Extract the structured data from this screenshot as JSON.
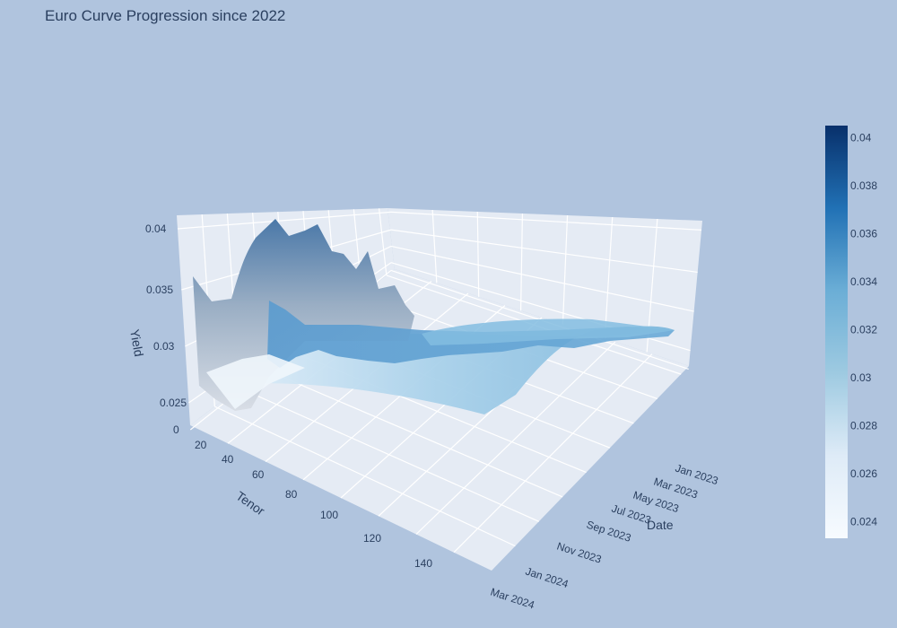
{
  "chart_data": {
    "type": "surface",
    "title": "Euro Curve Progression since 2022",
    "xlabel": "Tenor",
    "ylabel": "Date",
    "zlabel": "Yield",
    "x_ticks": [
      "20",
      "40",
      "60",
      "80",
      "100",
      "120",
      "140"
    ],
    "y_ticks": [
      "Jan 2023",
      "Mar 2023",
      "May 2023",
      "Jul 2023",
      "Sep 2023",
      "Nov 2023",
      "Jan 2024",
      "Mar 2024"
    ],
    "z_ticks": [
      "0",
      "0.025",
      "0.03",
      "0.035",
      "0.04"
    ],
    "colorbar": {
      "range": [
        0.0233,
        0.0405
      ],
      "ticks": [
        "0.024",
        "0.026",
        "0.028",
        "0.03",
        "0.032",
        "0.034",
        "0.036",
        "0.038",
        "0.04"
      ]
    },
    "colorscale": "Blues",
    "series": [
      {
        "date": "Jan 2023",
        "tenor": [
          1,
          2,
          5,
          10,
          20,
          30,
          50
        ],
        "yield": [
          0.0255,
          0.025,
          0.0245,
          0.024,
          0.0238,
          0.0236,
          0.0234
        ]
      },
      {
        "date": "Jul 2023",
        "tenor": [
          1,
          10,
          20,
          30,
          50
        ],
        "yield": [
          0.0345,
          0.0305,
          0.0292,
          0.028,
          0.0262
        ]
      },
      {
        "date": "Mar 2024",
        "tenor": [
          1,
          10,
          30,
          60,
          100,
          140,
          150
        ],
        "yield": [
          0.0392,
          0.0376,
          0.035,
          0.033,
          0.0315,
          0.0305,
          0.03
        ]
      }
    ]
  }
}
